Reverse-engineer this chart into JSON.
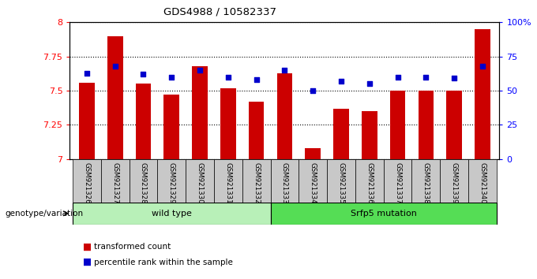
{
  "title": "GDS4988 / 10582337",
  "samples": [
    "GSM921326",
    "GSM921327",
    "GSM921328",
    "GSM921329",
    "GSM921330",
    "GSM921331",
    "GSM921332",
    "GSM921333",
    "GSM921334",
    "GSM921335",
    "GSM921336",
    "GSM921337",
    "GSM921338",
    "GSM921339",
    "GSM921340"
  ],
  "transformed_count": [
    7.56,
    7.9,
    7.55,
    7.47,
    7.68,
    7.52,
    7.42,
    7.63,
    7.08,
    7.37,
    7.35,
    7.5,
    7.5,
    7.5,
    7.95
  ],
  "percentile_rank": [
    63,
    68,
    62,
    60,
    65,
    60,
    58,
    65,
    50,
    57,
    55,
    60,
    60,
    59,
    68
  ],
  "ylim_left": [
    7.0,
    8.0
  ],
  "ylim_right": [
    0,
    100
  ],
  "yticks_left": [
    7.0,
    7.25,
    7.5,
    7.75,
    8.0
  ],
  "ytick_labels_left": [
    "7",
    "7.25",
    "7.5",
    "7.75",
    "8"
  ],
  "yticks_right": [
    0,
    25,
    50,
    75,
    100
  ],
  "ytick_labels_right": [
    "0",
    "25",
    "50",
    "75",
    "100%"
  ],
  "bar_color": "#cc0000",
  "dot_color": "#0000cc",
  "wild_type_count": 7,
  "srfp5_count": 8,
  "wild_type_label": "wild type",
  "srfp5_label": "Srfp5 mutation",
  "legend_bar_label": "transformed count",
  "legend_dot_label": "percentile rank within the sample",
  "genotype_label": "genotype/variation",
  "xticklabel_bg": "#c8c8c8",
  "wt_bg": "#b8f0b8",
  "sr_bg": "#55dd55"
}
